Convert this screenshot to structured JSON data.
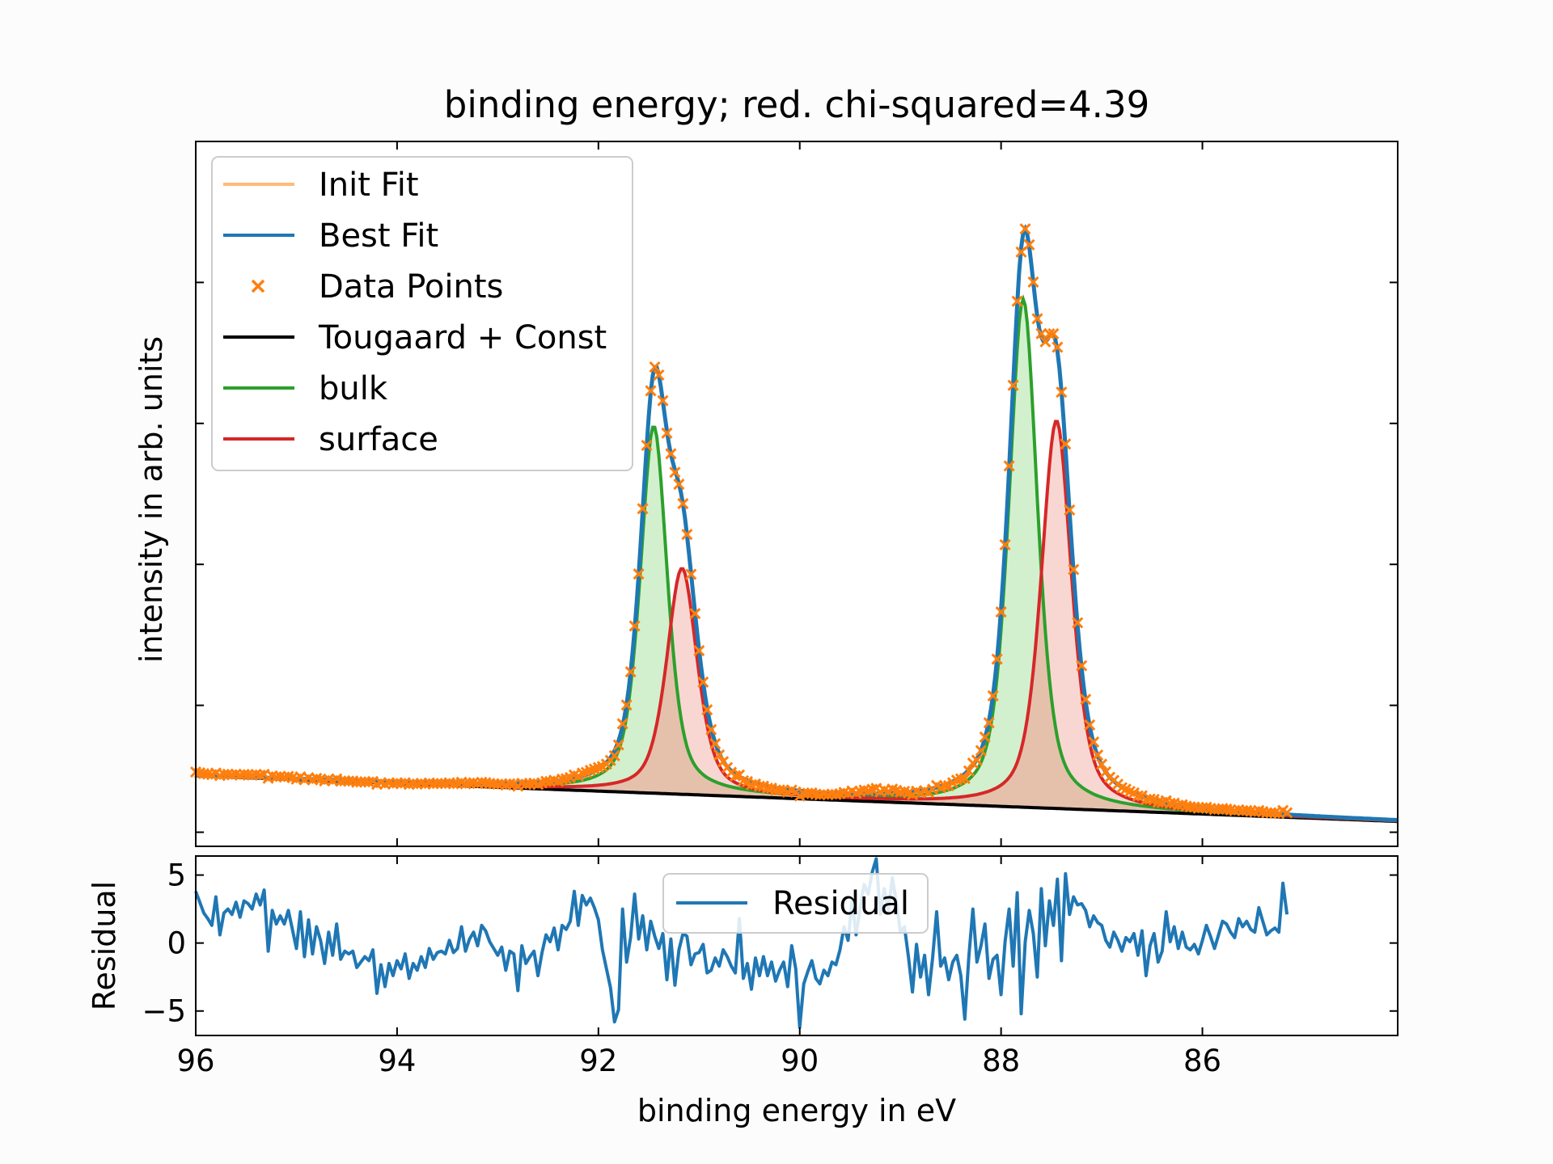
{
  "chart_data": [
    {
      "type": "line",
      "title": "binding energy; red. chi-squared=4.39",
      "xlabel": "binding energy in eV",
      "ylabel": "intensity in arb. units",
      "xlim": [
        96,
        84.06
      ],
      "ylim": [
        0,
        1.0
      ],
      "x_ticks": [
        96,
        94,
        92,
        90,
        88,
        86
      ],
      "x_tick_labels": [
        "96",
        "94",
        "92",
        "90",
        "88",
        "86"
      ],
      "y_tick_labels_shown": false,
      "legend_position": "top-left",
      "legend": [
        "Init Fit",
        "Best Fit",
        "Data Points",
        "Tougaard + Const",
        "bulk",
        "surface"
      ],
      "components": {
        "background": {
          "name": "Tougaard + Const",
          "value_at_96": 0.1,
          "value_at_84": 0.035
        },
        "bulk_peaks": [
          {
            "center": 91.45,
            "height": 0.52,
            "fwhm": 0.32
          },
          {
            "center": 87.78,
            "height": 0.72,
            "fwhm": 0.34
          }
        ],
        "surface_peaks": [
          {
            "center": 91.17,
            "height": 0.32,
            "fwhm": 0.36
          },
          {
            "center": 87.45,
            "height": 0.55,
            "fwhm": 0.36
          }
        ]
      },
      "series": [
        {
          "name": "Init Fit",
          "style": "line",
          "color": "#ffbb78"
        },
        {
          "name": "Best Fit",
          "style": "line",
          "color": "#1f77b4"
        },
        {
          "name": "Data Points",
          "style": "x-marker",
          "color": "#ff7f0e"
        },
        {
          "name": "Tougaard + Const",
          "style": "line",
          "color": "#000000"
        },
        {
          "name": "bulk",
          "style": "line+fill",
          "color": "#2ca02c",
          "fill": "#d0efcb"
        },
        {
          "name": "surface",
          "style": "line+fill",
          "color": "#d62728",
          "fill": "#f6c9c4"
        }
      ]
    },
    {
      "type": "line",
      "xlabel": "binding energy in eV",
      "ylabel": "Residual",
      "xlim": [
        96,
        84.06
      ],
      "ylim": [
        -6.8,
        6.4
      ],
      "y_ticks": [
        5,
        0,
        -5
      ],
      "y_tick_labels": [
        "5",
        "0",
        "−5"
      ],
      "legend_position": "top-center",
      "legend": [
        "Residual"
      ],
      "series": [
        {
          "name": "Residual",
          "color": "#1f77b4",
          "x_start": 96,
          "x_step": -0.04,
          "values": [
            3.8,
            3.0,
            2.2,
            1.8,
            1.3,
            3.4,
            0.6,
            2.2,
            2.5,
            2.1,
            3.0,
            1.9,
            3.1,
            2.9,
            2.5,
            3.6,
            2.8,
            3.9,
            -0.6,
            2.4,
            1.4,
            2.0,
            1.4,
            2.4,
            1.0,
            -0.4,
            2.3,
            -1.0,
            1.7,
            -0.8,
            1.2,
            0.2,
            -1.5,
            0.8,
            -0.9,
            1.4,
            -1.2,
            -0.6,
            -0.8,
            -0.6,
            -1.8,
            -1.4,
            -1.0,
            -1.3,
            -0.5,
            -3.7,
            -1.6,
            -3.2,
            -1.5,
            -2.4,
            -1.3,
            -1.9,
            -0.8,
            -2.6,
            -1.5,
            -2.0,
            -1.0,
            -1.8,
            -0.4,
            -1.2,
            -0.7,
            -0.6,
            -0.8,
            0.2,
            -0.7,
            -0.4,
            1.2,
            -0.6,
            0.3,
            0.8,
            -0.2,
            1.3,
            0.9,
            0.1,
            -0.4,
            -0.9,
            -0.3,
            -2.0,
            -0.6,
            -0.8,
            -3.5,
            -0.2,
            -1.5,
            -1.0,
            -0.6,
            -2.4,
            -0.7,
            0.6,
            0.1,
            1.1,
            -0.5,
            1.3,
            1.0,
            1.6,
            3.8,
            1.3,
            3.5,
            2.8,
            3.3,
            2.6,
            1.7,
            -0.5,
            -1.9,
            -3.3,
            -5.8,
            -4.9,
            2.5,
            -1.4,
            0.4,
            3.6,
            0.3,
            2.0,
            -0.5,
            1.6,
            0.5,
            -0.4,
            0.7,
            -2.7,
            0.3,
            -3.1,
            -0.5,
            0.7,
            0.5,
            -1.6,
            -0.8,
            -0.7,
            -0.1,
            -2.2,
            -2.0,
            -1.1,
            -1.7,
            -0.5,
            -1.0,
            -1.7,
            -2.2,
            1.8,
            -2.6,
            -1.5,
            -3.4,
            -1.1,
            -2.4,
            -1.0,
            -2.4,
            -1.4,
            -2.8,
            -2.0,
            -1.4,
            -3.2,
            -0.2,
            -1.9,
            -6.2,
            -3.0,
            -2.1,
            -1.3,
            -2.6,
            -3.0,
            -2.0,
            -2.4,
            -1.4,
            -1.6,
            -0.5,
            1.2,
            0.2,
            3.1,
            0.6,
            2.6,
            4.3,
            3.6,
            5.2,
            6.2,
            2.1,
            4.0,
            2.4,
            4.8,
            3.0,
            0.8,
            1.2,
            -1.0,
            -3.6,
            -0.1,
            -2.5,
            -0.9,
            -3.8,
            -1.1,
            2.3,
            -1.7,
            -1.1,
            -2.7,
            -1.4,
            -0.9,
            -2.4,
            -5.6,
            -1.0,
            2.5,
            -1.4,
            -0.2,
            1.4,
            -2.6,
            -1.2,
            -0.9,
            -3.8,
            0.1,
            2.5,
            -1.7,
            3.7,
            -5.2,
            0.1,
            2.4,
            0.7,
            -2.5,
            4.0,
            -0.2,
            3.1,
            1.3,
            4.7,
            -1.3,
            5.1,
            2.1,
            3.4,
            2.8,
            2.9,
            2.4,
            1.2,
            2.0,
            1.5,
            1.3,
            0.2,
            -0.3,
            0.8,
            0.2,
            -0.6,
            0.4,
            0.1,
            0.7,
            -0.9,
            0.9,
            -2.4,
            -0.2,
            0.7,
            -1.4,
            -0.6,
            2.3,
            0.1,
            1.2,
            -0.4,
            0.8,
            -0.3,
            -0.5,
            -0.1,
            -0.8,
            0.2,
            1.3,
            0.5,
            -0.4,
            0.6,
            1.6,
            1.4,
            0.8,
            0.4,
            1.8,
            1.2,
            1.6,
            1.0,
            0.8,
            2.6,
            1.6,
            0.6,
            0.9,
            1.1,
            0.8,
            4.4,
            2.1
          ]
        }
      ]
    }
  ]
}
